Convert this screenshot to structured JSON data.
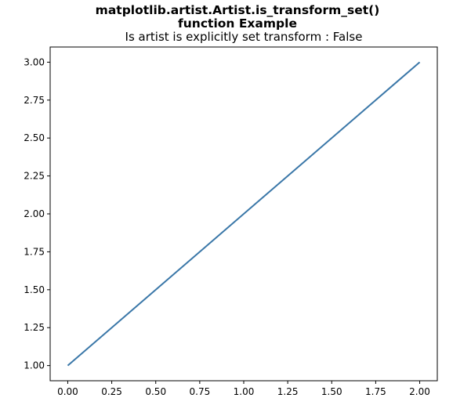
{
  "chart_data": {
    "type": "line",
    "suptitle_lines": [
      "matplotlib.artist.Artist.is_transform_set()",
      "function Example"
    ],
    "title": "Is artist is explicitly set transform : False",
    "xlabel": "",
    "ylabel": "",
    "xlim": [
      -0.1,
      2.1
    ],
    "ylim": [
      0.9,
      3.1
    ],
    "x_ticks": [
      0.0,
      0.25,
      0.5,
      0.75,
      1.0,
      1.25,
      1.5,
      1.75,
      2.0
    ],
    "x_tick_labels": [
      "0.00",
      "0.25",
      "0.50",
      "0.75",
      "1.00",
      "1.25",
      "1.50",
      "1.75",
      "2.00"
    ],
    "y_ticks": [
      1.0,
      1.25,
      1.5,
      1.75,
      2.0,
      2.25,
      2.5,
      2.75,
      3.0
    ],
    "y_tick_labels": [
      "1.00",
      "1.25",
      "1.50",
      "1.75",
      "2.00",
      "2.25",
      "2.50",
      "2.75",
      "3.00"
    ],
    "grid": false,
    "legend": "none",
    "series": [
      {
        "x": [
          0,
          1,
          2
        ],
        "y": [
          1,
          2,
          3
        ],
        "color": "#3a77a8"
      }
    ]
  }
}
